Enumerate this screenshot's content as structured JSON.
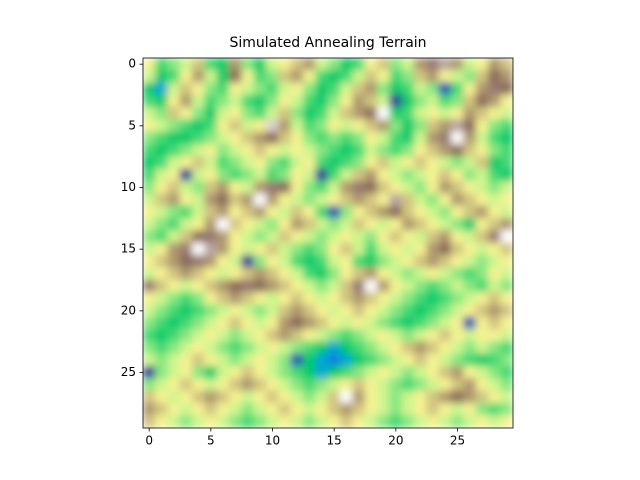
{
  "chart_data": {
    "type": "heatmap",
    "title": "Simulated Annealing Terrain",
    "cmap": "terrain",
    "xlim": [
      -0.5,
      29.5
    ],
    "ylim": [
      29.5,
      -0.5
    ],
    "xticks": [
      0,
      5,
      10,
      15,
      20,
      25
    ],
    "yticks": [
      0,
      5,
      10,
      15,
      20,
      25
    ],
    "z": [
      [
        0.5,
        0.35,
        0.4,
        0.45,
        0.55,
        0.35,
        0.3,
        0.6,
        0.4,
        0.3,
        0.45,
        0.5,
        0.55,
        0.6,
        0.45,
        0.4,
        0.3,
        0.35,
        0.5,
        0.55,
        0.4,
        0.45,
        0.6,
        0.7,
        0.75,
        0.6,
        0.45,
        0.5,
        0.6,
        0.55
      ],
      [
        0.45,
        0.3,
        0.35,
        0.5,
        0.6,
        0.45,
        0.3,
        0.65,
        0.5,
        0.35,
        0.4,
        0.55,
        0.6,
        0.5,
        0.35,
        0.3,
        0.35,
        0.45,
        0.55,
        0.5,
        0.35,
        0.4,
        0.55,
        0.6,
        0.5,
        0.45,
        0.4,
        0.55,
        0.65,
        0.6
      ],
      [
        0.3,
        0.25,
        0.45,
        0.55,
        0.5,
        0.4,
        0.35,
        0.5,
        0.45,
        0.4,
        0.35,
        0.45,
        0.5,
        0.4,
        0.3,
        0.35,
        0.45,
        0.55,
        0.6,
        0.4,
        0.3,
        0.35,
        0.45,
        0.4,
        0.15,
        0.35,
        0.5,
        0.6,
        0.7,
        0.65
      ],
      [
        0.35,
        0.3,
        0.5,
        0.6,
        0.45,
        0.35,
        0.4,
        0.45,
        0.35,
        0.3,
        0.4,
        0.5,
        0.45,
        0.35,
        0.3,
        0.4,
        0.5,
        0.6,
        0.55,
        0.45,
        0.12,
        0.3,
        0.4,
        0.45,
        0.35,
        0.4,
        0.55,
        0.65,
        0.6,
        0.5
      ],
      [
        0.45,
        0.4,
        0.55,
        0.5,
        0.4,
        0.3,
        0.45,
        0.5,
        0.4,
        0.35,
        0.45,
        0.55,
        0.4,
        0.3,
        0.35,
        0.45,
        0.55,
        0.6,
        0.65,
        0.85,
        0.3,
        0.35,
        0.45,
        0.5,
        0.45,
        0.5,
        0.6,
        0.55,
        0.5,
        0.45
      ],
      [
        0.5,
        0.45,
        0.4,
        0.35,
        0.3,
        0.35,
        0.5,
        0.55,
        0.45,
        0.5,
        0.8,
        0.6,
        0.45,
        0.35,
        0.4,
        0.5,
        0.45,
        0.5,
        0.55,
        0.6,
        0.4,
        0.3,
        0.4,
        0.55,
        0.6,
        0.75,
        0.65,
        0.5,
        0.4,
        0.35
      ],
      [
        0.4,
        0.35,
        0.3,
        0.3,
        0.35,
        0.4,
        0.45,
        0.5,
        0.55,
        0.6,
        0.65,
        0.55,
        0.5,
        0.4,
        0.35,
        0.4,
        0.35,
        0.4,
        0.5,
        0.45,
        0.35,
        0.3,
        0.45,
        0.6,
        0.7,
        0.85,
        0.6,
        0.45,
        0.35,
        0.3
      ],
      [
        0.35,
        0.3,
        0.35,
        0.4,
        0.45,
        0.5,
        0.4,
        0.45,
        0.5,
        0.55,
        0.5,
        0.45,
        0.5,
        0.45,
        0.4,
        0.35,
        0.3,
        0.35,
        0.45,
        0.4,
        0.35,
        0.4,
        0.5,
        0.55,
        0.6,
        0.65,
        0.55,
        0.5,
        0.4,
        0.35
      ],
      [
        0.3,
        0.35,
        0.45,
        0.5,
        0.55,
        0.45,
        0.35,
        0.4,
        0.45,
        0.5,
        0.4,
        0.35,
        0.45,
        0.5,
        0.35,
        0.3,
        0.35,
        0.4,
        0.5,
        0.55,
        0.45,
        0.5,
        0.55,
        0.5,
        0.45,
        0.4,
        0.45,
        0.55,
        0.3,
        0.35
      ],
      [
        0.35,
        0.45,
        0.5,
        0.12,
        0.45,
        0.5,
        0.4,
        0.35,
        0.4,
        0.45,
        0.35,
        0.4,
        0.5,
        0.45,
        0.12,
        0.35,
        0.45,
        0.55,
        0.6,
        0.5,
        0.45,
        0.4,
        0.45,
        0.5,
        0.55,
        0.5,
        0.4,
        0.45,
        0.35,
        0.3
      ],
      [
        0.4,
        0.5,
        0.55,
        0.45,
        0.4,
        0.55,
        0.6,
        0.5,
        0.45,
        0.6,
        0.7,
        0.65,
        0.5,
        0.4,
        0.35,
        0.45,
        0.6,
        0.7,
        0.65,
        0.55,
        0.5,
        0.45,
        0.4,
        0.5,
        0.6,
        0.55,
        0.5,
        0.45,
        0.4,
        0.45
      ],
      [
        0.45,
        0.55,
        0.6,
        0.5,
        0.45,
        0.6,
        0.65,
        0.55,
        0.6,
        0.85,
        0.6,
        0.5,
        0.45,
        0.4,
        0.45,
        0.5,
        0.55,
        0.6,
        0.55,
        0.5,
        0.75,
        0.55,
        0.45,
        0.4,
        0.5,
        0.6,
        0.55,
        0.5,
        0.45,
        0.5
      ],
      [
        0.5,
        0.45,
        0.4,
        0.35,
        0.45,
        0.55,
        0.6,
        0.5,
        0.55,
        0.6,
        0.5,
        0.45,
        0.55,
        0.5,
        0.35,
        0.15,
        0.4,
        0.5,
        0.55,
        0.6,
        0.65,
        0.55,
        0.5,
        0.45,
        0.4,
        0.5,
        0.55,
        0.6,
        0.5,
        0.45
      ],
      [
        0.45,
        0.4,
        0.35,
        0.45,
        0.5,
        0.6,
        0.85,
        0.55,
        0.5,
        0.45,
        0.4,
        0.5,
        0.6,
        0.55,
        0.45,
        0.4,
        0.45,
        0.55,
        0.5,
        0.45,
        0.5,
        0.6,
        0.55,
        0.5,
        0.45,
        0.4,
        0.3,
        0.5,
        0.55,
        0.6
      ],
      [
        0.4,
        0.35,
        0.45,
        0.55,
        0.65,
        0.7,
        0.6,
        0.5,
        0.45,
        0.4,
        0.45,
        0.55,
        0.5,
        0.45,
        0.4,
        0.45,
        0.5,
        0.45,
        0.4,
        0.5,
        0.55,
        0.5,
        0.45,
        0.55,
        0.6,
        0.5,
        0.45,
        0.55,
        0.7,
        0.85
      ],
      [
        0.45,
        0.5,
        0.6,
        0.7,
        0.85,
        0.75,
        0.6,
        0.5,
        0.45,
        0.5,
        0.55,
        0.45,
        0.4,
        0.35,
        0.4,
        0.5,
        0.55,
        0.45,
        0.35,
        0.45,
        0.5,
        0.45,
        0.5,
        0.6,
        0.65,
        0.55,
        0.5,
        0.45,
        0.5,
        0.55
      ],
      [
        0.5,
        0.55,
        0.6,
        0.65,
        0.7,
        0.6,
        0.5,
        0.45,
        0.12,
        0.4,
        0.5,
        0.45,
        0.35,
        0.3,
        0.35,
        0.45,
        0.5,
        0.35,
        0.3,
        0.4,
        0.45,
        0.5,
        0.55,
        0.6,
        0.55,
        0.5,
        0.45,
        0.4,
        0.45,
        0.5
      ],
      [
        0.45,
        0.5,
        0.55,
        0.6,
        0.55,
        0.5,
        0.45,
        0.5,
        0.55,
        0.6,
        0.55,
        0.5,
        0.45,
        0.35,
        0.3,
        0.4,
        0.5,
        0.55,
        0.6,
        0.5,
        0.45,
        0.4,
        0.45,
        0.5,
        0.45,
        0.4,
        0.35,
        0.4,
        0.5,
        0.45
      ],
      [
        0.7,
        0.55,
        0.5,
        0.45,
        0.5,
        0.55,
        0.6,
        0.65,
        0.7,
        0.65,
        0.6,
        0.55,
        0.5,
        0.45,
        0.4,
        0.45,
        0.55,
        0.7,
        0.85,
        0.6,
        0.5,
        0.45,
        0.4,
        0.35,
        0.4,
        0.45,
        0.4,
        0.35,
        0.45,
        0.4
      ],
      [
        0.5,
        0.45,
        0.4,
        0.35,
        0.4,
        0.5,
        0.55,
        0.6,
        0.55,
        0.5,
        0.45,
        0.5,
        0.55,
        0.5,
        0.45,
        0.5,
        0.55,
        0.6,
        0.55,
        0.5,
        0.45,
        0.4,
        0.35,
        0.3,
        0.35,
        0.4,
        0.45,
        0.5,
        0.55,
        0.5
      ],
      [
        0.45,
        0.4,
        0.35,
        0.3,
        0.35,
        0.4,
        0.45,
        0.5,
        0.45,
        0.4,
        0.45,
        0.55,
        0.6,
        0.55,
        0.5,
        0.45,
        0.5,
        0.55,
        0.5,
        0.45,
        0.4,
        0.35,
        0.3,
        0.35,
        0.4,
        0.45,
        0.5,
        0.55,
        0.6,
        0.55
      ],
      [
        0.4,
        0.35,
        0.3,
        0.35,
        0.4,
        0.45,
        0.5,
        0.55,
        0.5,
        0.45,
        0.5,
        0.6,
        0.65,
        0.6,
        0.55,
        0.5,
        0.45,
        0.5,
        0.45,
        0.4,
        0.35,
        0.3,
        0.35,
        0.4,
        0.45,
        0.5,
        0.15,
        0.5,
        0.55,
        0.5
      ],
      [
        0.35,
        0.3,
        0.35,
        0.4,
        0.45,
        0.5,
        0.45,
        0.4,
        0.45,
        0.5,
        0.55,
        0.6,
        0.55,
        0.5,
        0.45,
        0.4,
        0.35,
        0.4,
        0.45,
        0.5,
        0.45,
        0.4,
        0.45,
        0.5,
        0.55,
        0.5,
        0.45,
        0.5,
        0.5,
        0.45
      ],
      [
        0.4,
        0.35,
        0.4,
        0.45,
        0.5,
        0.45,
        0.4,
        0.35,
        0.4,
        0.45,
        0.5,
        0.45,
        0.4,
        0.35,
        0.3,
        0.25,
        0.3,
        0.35,
        0.4,
        0.45,
        0.5,
        0.55,
        0.6,
        0.55,
        0.5,
        0.45,
        0.4,
        0.45,
        0.4,
        0.35
      ],
      [
        0.45,
        0.4,
        0.45,
        0.5,
        0.55,
        0.5,
        0.45,
        0.4,
        0.45,
        0.5,
        0.45,
        0.4,
        0.15,
        0.3,
        0.25,
        0.2,
        0.25,
        0.3,
        0.35,
        0.4,
        0.45,
        0.5,
        0.55,
        0.5,
        0.45,
        0.4,
        0.35,
        0.3,
        0.35,
        0.4
      ],
      [
        0.12,
        0.4,
        0.45,
        0.5,
        0.4,
        0.3,
        0.45,
        0.5,
        0.55,
        0.5,
        0.45,
        0.4,
        0.35,
        0.3,
        0.25,
        0.3,
        0.35,
        0.4,
        0.45,
        0.5,
        0.45,
        0.4,
        0.45,
        0.5,
        0.55,
        0.6,
        0.5,
        0.45,
        0.4,
        0.35
      ],
      [
        0.4,
        0.45,
        0.5,
        0.55,
        0.5,
        0.45,
        0.5,
        0.55,
        0.6,
        0.55,
        0.5,
        0.45,
        0.4,
        0.35,
        0.4,
        0.45,
        0.5,
        0.55,
        0.5,
        0.45,
        0.4,
        0.35,
        0.4,
        0.45,
        0.5,
        0.55,
        0.6,
        0.5,
        0.45,
        0.4
      ],
      [
        0.55,
        0.5,
        0.45,
        0.5,
        0.55,
        0.6,
        0.55,
        0.5,
        0.45,
        0.5,
        0.55,
        0.5,
        0.45,
        0.4,
        0.45,
        0.55,
        0.85,
        0.6,
        0.5,
        0.45,
        0.4,
        0.45,
        0.5,
        0.55,
        0.6,
        0.65,
        0.6,
        0.55,
        0.5,
        0.45
      ],
      [
        0.6,
        0.55,
        0.5,
        0.45,
        0.5,
        0.55,
        0.5,
        0.45,
        0.4,
        0.45,
        0.5,
        0.55,
        0.5,
        0.45,
        0.5,
        0.55,
        0.6,
        0.55,
        0.5,
        0.45,
        0.4,
        0.45,
        0.5,
        0.55,
        0.5,
        0.45,
        0.5,
        0.4,
        0.35,
        0.4
      ],
      [
        0.55,
        0.5,
        0.45,
        0.4,
        0.45,
        0.5,
        0.45,
        0.4,
        0.35,
        0.4,
        0.45,
        0.5,
        0.45,
        0.4,
        0.45,
        0.5,
        0.55,
        0.5,
        0.45,
        0.4,
        0.35,
        0.4,
        0.45,
        0.5,
        0.45,
        0.4,
        0.45,
        0.5,
        0.45,
        0.5
      ]
    ]
  }
}
